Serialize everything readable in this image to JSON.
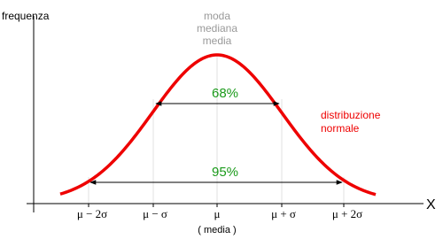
{
  "axis": {
    "y_label": "frequenza",
    "x_label": "X"
  },
  "center_labels": [
    "moda",
    "mediana",
    "media"
  ],
  "intervals": [
    {
      "label": "68%"
    },
    {
      "label": "95%"
    }
  ],
  "curve_label": [
    "distribuzione",
    "normale"
  ],
  "x_ticks": [
    "μ − 2σ",
    "μ − σ",
    "μ",
    "μ + σ",
    "μ + 2σ"
  ],
  "mean_note": "( media )"
}
